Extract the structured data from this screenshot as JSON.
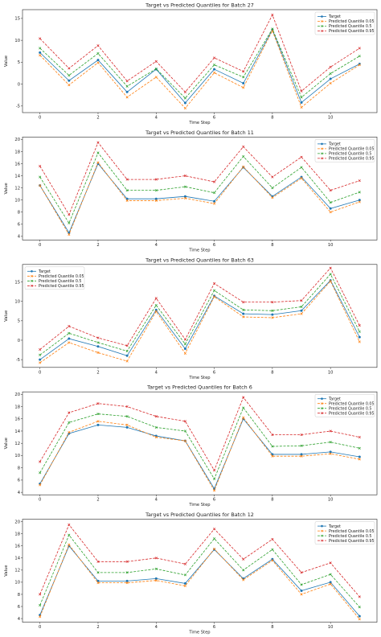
{
  "chart_data": [
    {
      "type": "line",
      "title": "Target vs Predicted Quantiles for Batch 27",
      "xlabel": "Time Step",
      "ylabel": "Value",
      "x": [
        0,
        1,
        2,
        3,
        4,
        5,
        6,
        7,
        8,
        9,
        10,
        11
      ],
      "xticks": [
        0,
        2,
        4,
        6,
        8,
        10
      ],
      "yticks": [
        -5,
        0,
        5,
        10,
        15
      ],
      "ylim": [
        -6.5,
        17
      ],
      "legend_position": "top-right",
      "series": [
        {
          "name": "Target",
          "color": "#1f77b4",
          "values": [
            7.2,
            0.8,
            5.5,
            -1.8,
            3.4,
            -4.3,
            3.4,
            0.2,
            12.4,
            -4.2,
            1.2,
            4.6
          ]
        },
        {
          "name": "Predicted Quantile 0.05",
          "color": "#ff7f0e",
          "values": [
            6.6,
            -0.2,
            4.9,
            -3.0,
            1.6,
            -5.5,
            2.6,
            -0.8,
            12.2,
            -5.3,
            0.2,
            4.4
          ]
        },
        {
          "name": "Predicted Quantile 0.5",
          "color": "#2ca02c",
          "values": [
            8.2,
            2.0,
            7.0,
            -0.5,
            3.5,
            -3.2,
            4.4,
            1.6,
            12.6,
            -3.0,
            2.4,
            6.4
          ]
        },
        {
          "name": "Predicted Quantile 0.95",
          "color": "#d62728",
          "values": [
            10.4,
            3.6,
            8.8,
            0.7,
            5.2,
            -1.8,
            6.0,
            2.9,
            15.8,
            -1.6,
            3.9,
            8.2
          ]
        }
      ]
    },
    {
      "type": "line",
      "title": "Target vs Predicted Quantiles for Batch 11",
      "xlabel": "Time Step",
      "ylabel": "Value",
      "x": [
        0,
        1,
        2,
        3,
        4,
        5,
        6,
        7,
        8,
        9,
        10,
        11
      ],
      "xticks": [
        0,
        2,
        4,
        6,
        8,
        10
      ],
      "yticks": [
        4,
        6,
        8,
        10,
        12,
        14,
        16,
        18,
        20
      ],
      "ylim": [
        3.4,
        20.4
      ],
      "legend_position": "top-right",
      "series": [
        {
          "name": "Target",
          "color": "#1f77b4",
          "values": [
            12.4,
            4.6,
            16.0,
            10.2,
            10.2,
            10.6,
            9.8,
            15.4,
            10.6,
            13.8,
            8.6,
            10.0
          ]
        },
        {
          "name": "Predicted Quantile 0.05",
          "color": "#ff7f0e",
          "values": [
            12.4,
            4.3,
            16.2,
            9.9,
            9.9,
            10.3,
            9.4,
            15.5,
            10.4,
            13.6,
            8.0,
            9.7
          ]
        },
        {
          "name": "Predicted Quantile 0.5",
          "color": "#2ca02c",
          "values": [
            13.8,
            6.2,
            17.8,
            11.6,
            11.6,
            12.2,
            11.2,
            17.2,
            12.0,
            15.4,
            9.6,
            11.3
          ]
        },
        {
          "name": "Predicted Quantile 0.95",
          "color": "#d62728",
          "values": [
            15.6,
            7.6,
            19.5,
            13.4,
            13.4,
            14.0,
            13.0,
            18.8,
            13.8,
            17.1,
            11.6,
            13.2
          ]
        }
      ]
    },
    {
      "type": "line",
      "title": "Target vs Predicted Quantiles for Batch 63",
      "xlabel": "Time Step",
      "ylabel": "Value",
      "x": [
        0,
        1,
        2,
        3,
        4,
        5,
        6,
        7,
        8,
        9,
        10,
        11
      ],
      "xticks": [
        0,
        2,
        4,
        6,
        8,
        10
      ],
      "yticks": [
        -5,
        0,
        5,
        10,
        15
      ],
      "ylim": [
        -7,
        19.5
      ],
      "legend_position": "top-left",
      "series": [
        {
          "name": "Target",
          "color": "#1f77b4",
          "values": [
            -5.0,
            0.4,
            -1.6,
            -4.0,
            7.8,
            -2.2,
            11.4,
            6.8,
            6.6,
            7.6,
            15.4,
            0.8
          ]
        },
        {
          "name": "Predicted Quantile 0.05",
          "color": "#ff7f0e",
          "values": [
            -5.8,
            -0.6,
            -3.2,
            -5.4,
            7.4,
            -3.4,
            11.2,
            6.0,
            5.8,
            6.8,
            15.2,
            -0.4
          ]
        },
        {
          "name": "Predicted Quantile 0.5",
          "color": "#2ca02c",
          "values": [
            -3.8,
            1.8,
            -0.6,
            -2.8,
            9.0,
            -1.0,
            12.8,
            7.8,
            7.6,
            8.6,
            17.0,
            2.2
          ]
        },
        {
          "name": "Predicted Quantile 0.95",
          "color": "#d62728",
          "values": [
            -2.4,
            3.6,
            0.6,
            -1.4,
            10.8,
            0.2,
            14.6,
            9.8,
            9.8,
            10.2,
            18.6,
            3.8
          ]
        }
      ]
    },
    {
      "type": "line",
      "title": "Target vs Predicted Quantiles for Batch 6",
      "xlabel": "Time Step",
      "ylabel": "Value",
      "x": [
        0,
        1,
        2,
        3,
        4,
        5,
        6,
        7,
        8,
        9,
        10,
        11
      ],
      "xticks": [
        0,
        2,
        4,
        6,
        8,
        10
      ],
      "yticks": [
        4,
        6,
        8,
        10,
        12,
        14,
        16,
        18,
        20
      ],
      "ylim": [
        3.6,
        20.4
      ],
      "legend_position": "top-right",
      "series": [
        {
          "name": "Target",
          "color": "#1f77b4",
          "values": [
            5.4,
            13.6,
            15.0,
            14.6,
            13.2,
            12.4,
            4.6,
            16.0,
            10.2,
            10.2,
            10.6,
            9.8
          ]
        },
        {
          "name": "Predicted Quantile 0.05",
          "color": "#ff7f0e",
          "values": [
            5.2,
            13.8,
            15.6,
            15.0,
            13.0,
            12.4,
            4.3,
            16.2,
            9.9,
            9.9,
            10.3,
            9.4
          ]
        },
        {
          "name": "Predicted Quantile 0.5",
          "color": "#2ca02c",
          "values": [
            7.2,
            15.4,
            16.8,
            16.4,
            14.6,
            14.0,
            6.2,
            17.8,
            11.5,
            11.6,
            12.2,
            11.2
          ]
        },
        {
          "name": "Predicted Quantile 0.95",
          "color": "#d62728",
          "values": [
            9.0,
            17.0,
            18.5,
            18.0,
            16.4,
            15.6,
            7.6,
            19.5,
            13.4,
            13.4,
            14.0,
            13.0
          ]
        }
      ]
    },
    {
      "type": "line",
      "title": "Target vs Predicted Quantiles for Batch 12",
      "xlabel": "Time Step",
      "ylabel": "Value",
      "x": [
        0,
        1,
        2,
        3,
        4,
        5,
        6,
        7,
        8,
        9,
        10,
        11
      ],
      "xticks": [
        0,
        2,
        4,
        6,
        8,
        10
      ],
      "yticks": [
        4,
        6,
        8,
        10,
        12,
        14,
        16,
        18,
        20
      ],
      "ylim": [
        3.4,
        20.4
      ],
      "legend_position": "top-right",
      "series": [
        {
          "name": "Target",
          "color": "#1f77b4",
          "values": [
            4.6,
            16.0,
            10.2,
            10.2,
            10.6,
            9.8,
            15.4,
            10.6,
            13.8,
            8.6,
            10.0,
            4.4
          ]
        },
        {
          "name": "Predicted Quantile 0.05",
          "color": "#ff7f0e",
          "values": [
            4.3,
            16.2,
            9.9,
            9.9,
            10.3,
            9.4,
            15.5,
            10.4,
            13.6,
            8.0,
            9.7,
            3.9
          ]
        },
        {
          "name": "Predicted Quantile 0.5",
          "color": "#2ca02c",
          "values": [
            6.2,
            17.8,
            11.6,
            11.6,
            12.2,
            11.2,
            17.2,
            12.0,
            15.4,
            9.6,
            11.3,
            5.9
          ]
        },
        {
          "name": "Predicted Quantile 0.95",
          "color": "#d62728",
          "values": [
            8.0,
            19.5,
            13.4,
            13.4,
            14.0,
            13.0,
            18.8,
            13.8,
            17.1,
            11.6,
            13.2,
            7.6
          ]
        }
      ]
    }
  ]
}
